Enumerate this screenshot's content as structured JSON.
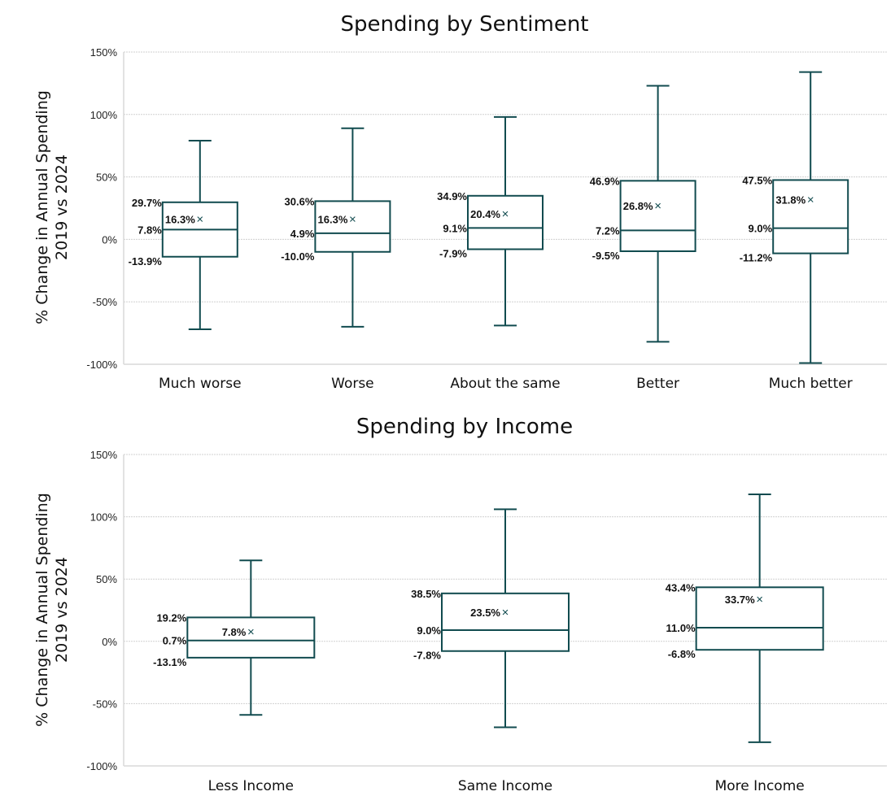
{
  "chart_data": [
    {
      "type": "box",
      "title": "Spending by Sentiment",
      "xlabel": "",
      "ylabel": [
        "% Change in Annual Spending",
        "2019 vs 2024"
      ],
      "ylim": [
        -100,
        150
      ],
      "yticks": [
        "-100%",
        "-50%",
        "0%",
        "50%",
        "100%",
        "150%"
      ],
      "ytick_values": [
        -100,
        -50,
        0,
        50,
        100,
        150
      ],
      "grid": true,
      "categories": [
        "Much worse",
        "Worse",
        "About the same",
        "Better",
        "Much better"
      ],
      "boxes": [
        {
          "min": -72,
          "q1": -13.9,
          "median": 7.8,
          "q3": 29.7,
          "max": 79,
          "mean": 16.3,
          "labels": {
            "q1": "-13.9%",
            "median": "7.8%",
            "q3": "29.7%",
            "mean": "16.3%"
          }
        },
        {
          "min": -70,
          "q1": -10.0,
          "median": 4.9,
          "q3": 30.6,
          "max": 89,
          "mean": 16.3,
          "labels": {
            "q1": "-10.0%",
            "median": "4.9%",
            "q3": "30.6%",
            "mean": "16.3%"
          }
        },
        {
          "min": -69,
          "q1": -7.9,
          "median": 9.1,
          "q3": 34.9,
          "max": 98,
          "mean": 20.4,
          "labels": {
            "q1": "-7.9%",
            "median": "9.1%",
            "q3": "34.9%",
            "mean": "20.4%"
          }
        },
        {
          "min": -82,
          "q1": -9.5,
          "median": 7.2,
          "q3": 46.9,
          "max": 123,
          "mean": 26.8,
          "labels": {
            "q1": "-9.5%",
            "median": "7.2%",
            "q3": "46.9%",
            "mean": "26.8%"
          }
        },
        {
          "min": -99,
          "q1": -11.2,
          "median": 9.0,
          "q3": 47.5,
          "max": 134,
          "mean": 31.8,
          "labels": {
            "q1": "-11.2%",
            "median": "9.0%",
            "q3": "47.5%",
            "mean": "31.8%"
          }
        }
      ],
      "mean_marker": "×"
    },
    {
      "type": "box",
      "title": "Spending by Income",
      "xlabel": "",
      "ylabel": [
        "% Change in Annual Spending",
        "2019 vs 2024"
      ],
      "ylim": [
        -100,
        150
      ],
      "yticks": [
        "-100%",
        "-50%",
        "0%",
        "50%",
        "100%",
        "150%"
      ],
      "ytick_values": [
        -100,
        -50,
        0,
        50,
        100,
        150
      ],
      "grid": true,
      "categories": [
        "Less Income",
        "Same Income",
        "More Income"
      ],
      "boxes": [
        {
          "min": -59,
          "q1": -13.1,
          "median": 0.7,
          "q3": 19.2,
          "max": 65,
          "mean": 7.8,
          "labels": {
            "q1": "-13.1%",
            "median": "0.7%",
            "q3": "19.2%",
            "mean": "7.8%"
          }
        },
        {
          "min": -69,
          "q1": -7.8,
          "median": 9.0,
          "q3": 38.5,
          "max": 106,
          "mean": 23.5,
          "labels": {
            "q1": "-7.8%",
            "median": "9.0%",
            "q3": "38.5%",
            "mean": "23.5%"
          }
        },
        {
          "min": -81,
          "q1": -6.8,
          "median": 11.0,
          "q3": 43.4,
          "max": 118,
          "mean": 33.7,
          "labels": {
            "q1": "-6.8%",
            "median": "11.0%",
            "q3": "43.4%",
            "mean": "33.7%"
          }
        }
      ],
      "mean_marker": "×"
    }
  ]
}
